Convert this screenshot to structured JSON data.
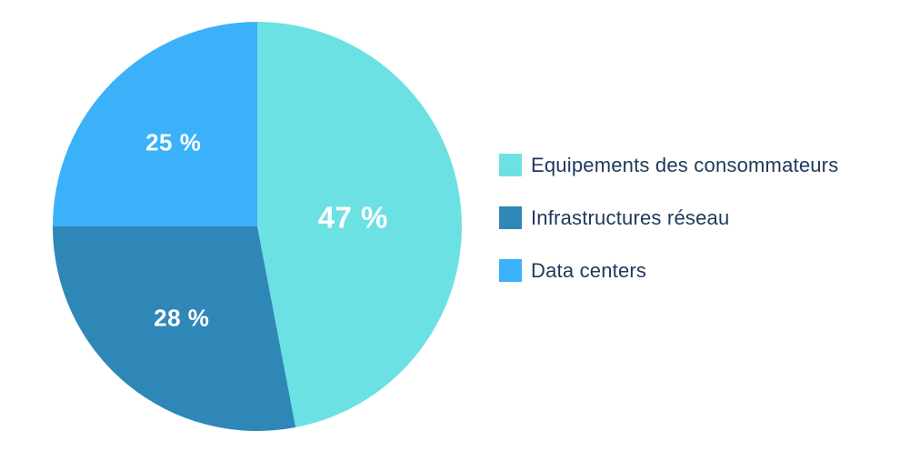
{
  "chart_data": {
    "type": "pie",
    "slices": [
      {
        "label": "Equipements des consommateurs",
        "value": 47,
        "value_label": "47 %",
        "color": "#6CE1E3"
      },
      {
        "label": "Infrastructures réseau",
        "value": 28,
        "value_label": "28 %",
        "color": "#2F87B8"
      },
      {
        "label": "Data centers",
        "value": 25,
        "value_label": "25 %",
        "color": "#3BB1F9"
      }
    ],
    "unit": "%",
    "start_angle": "12-o-clock",
    "direction": "clockwise",
    "legend_position": "right",
    "slice_labels_inside": true
  },
  "colors": {
    "slice_value_text": "#FFFFFF",
    "legend_text": "#21395C",
    "background": "#FFFFFF"
  }
}
